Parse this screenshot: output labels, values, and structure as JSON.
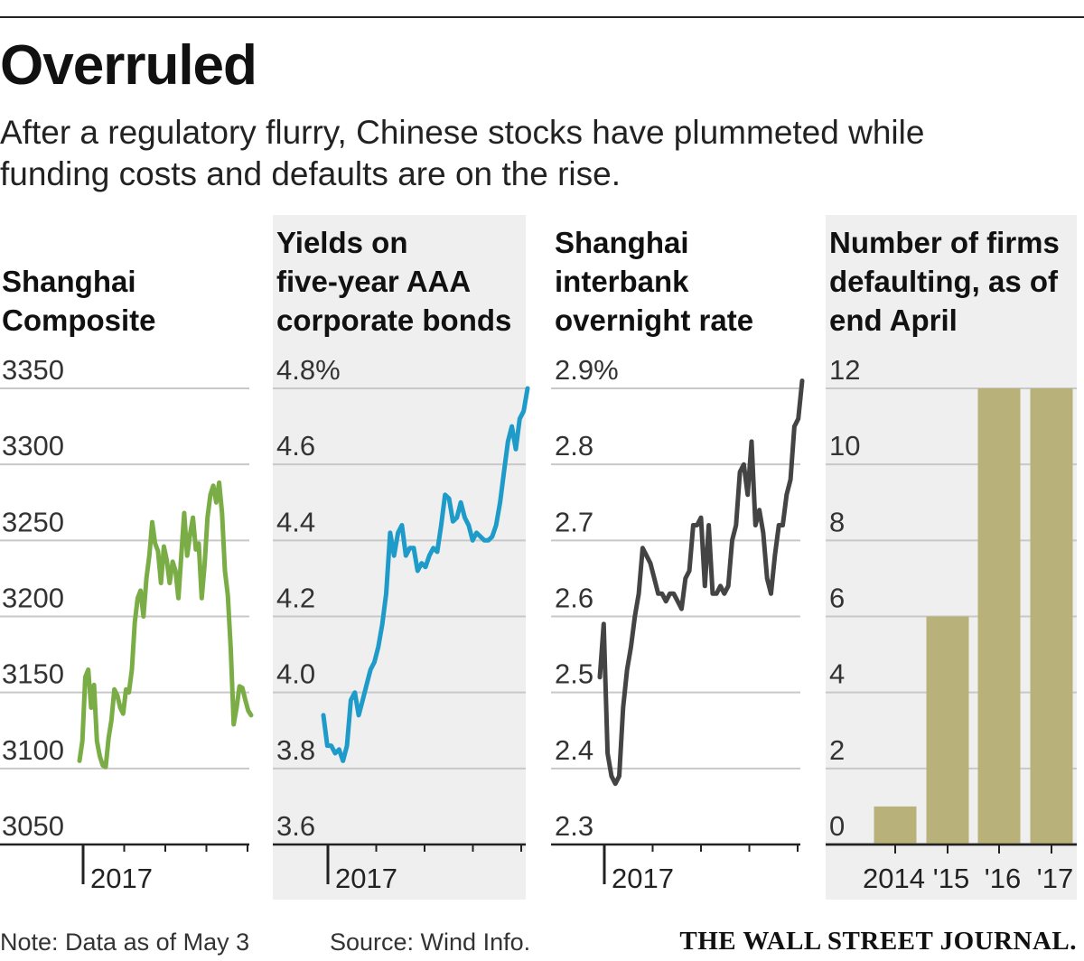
{
  "title": "Overruled",
  "subtitle": "After a regulatory flurry, Chinese stocks have plummeted while funding costs and defaults are on the rise.",
  "note": "Note: Data as of May 3",
  "source": "Source: Wind Info.",
  "publisher": "THE WALL STREET JOURNAL.",
  "colors": {
    "composite": "#7aad46",
    "yields": "#1e9bc8",
    "interbank": "#444444",
    "defaults": "#b8b27a",
    "panel_shade": "#efefef",
    "grid": "#c8c8c8"
  },
  "chart_data": [
    {
      "type": "line",
      "title": "Shanghai Composite",
      "title_lines": [
        "Shanghai",
        "Composite"
      ],
      "ylim": [
        3050,
        3350
      ],
      "yticks": [
        3050,
        3100,
        3150,
        3200,
        3250,
        3300,
        3350
      ],
      "ytick_labels": [
        "3050",
        "3100",
        "3150",
        "3200",
        "3250",
        "3300",
        "3350"
      ],
      "xlabel": "2017",
      "x_note": "trading days from early January to May 3, 2017",
      "values": [
        3105,
        3118,
        3160,
        3165,
        3140,
        3155,
        3118,
        3108,
        3102,
        3101,
        3120,
        3132,
        3152,
        3148,
        3140,
        3136,
        3152,
        3150,
        3165,
        3196,
        3212,
        3217,
        3200,
        3225,
        3240,
        3262,
        3248,
        3243,
        3222,
        3246,
        3237,
        3222,
        3236,
        3230,
        3212,
        3240,
        3268,
        3240,
        3254,
        3265,
        3244,
        3248,
        3212,
        3234,
        3265,
        3280,
        3286,
        3275,
        3288,
        3268,
        3230,
        3214,
        3178,
        3129,
        3140,
        3154,
        3153,
        3145,
        3138,
        3135
      ]
    },
    {
      "type": "line",
      "title": "Yields on five-year AAA corporate bonds",
      "title_lines": [
        "Yields on",
        "five-year AAA",
        "corporate bonds"
      ],
      "ylim": [
        3.6,
        4.8
      ],
      "yticks": [
        3.6,
        3.8,
        4.0,
        4.2,
        4.4,
        4.6,
        4.8
      ],
      "ytick_labels": [
        "3.6",
        "3.8",
        "4.0",
        "4.2",
        "4.4",
        "4.6",
        "4.8%"
      ],
      "xlabel": "2017",
      "x_note": "trading days from early January to May 3, 2017",
      "values": [
        3.94,
        3.86,
        3.86,
        3.84,
        3.85,
        3.82,
        3.86,
        3.98,
        4.0,
        3.94,
        3.98,
        4.02,
        4.06,
        4.08,
        4.12,
        4.18,
        4.26,
        4.42,
        4.36,
        4.42,
        4.44,
        4.36,
        4.38,
        4.38,
        4.32,
        4.34,
        4.33,
        4.36,
        4.38,
        4.37,
        4.44,
        4.52,
        4.51,
        4.45,
        4.46,
        4.5,
        4.46,
        4.44,
        4.4,
        4.42,
        4.41,
        4.4,
        4.4,
        4.41,
        4.44,
        4.5,
        4.58,
        4.66,
        4.7,
        4.64,
        4.72,
        4.74,
        4.8
      ]
    },
    {
      "type": "line",
      "title": "Shanghai interbank overnight rate",
      "title_lines": [
        "Shanghai",
        "interbank",
        "overnight rate"
      ],
      "ylim": [
        2.3,
        2.9
      ],
      "yticks": [
        2.3,
        2.4,
        2.5,
        2.6,
        2.7,
        2.8,
        2.9
      ],
      "ytick_labels": [
        "2.3",
        "2.4",
        "2.5",
        "2.6",
        "2.7",
        "2.8",
        "2.9%"
      ],
      "xlabel": "2017",
      "x_note": "trading days from early January to May 3, 2017",
      "values": [
        2.52,
        2.59,
        2.42,
        2.39,
        2.38,
        2.39,
        2.48,
        2.53,
        2.56,
        2.6,
        2.63,
        2.69,
        2.68,
        2.67,
        2.65,
        2.63,
        2.63,
        2.62,
        2.63,
        2.63,
        2.62,
        2.61,
        2.65,
        2.66,
        2.72,
        2.72,
        2.73,
        2.64,
        2.72,
        2.63,
        2.63,
        2.64,
        2.63,
        2.64,
        2.7,
        2.72,
        2.79,
        2.8,
        2.76,
        2.83,
        2.72,
        2.74,
        2.71,
        2.65,
        2.63,
        2.68,
        2.72,
        2.72,
        2.76,
        2.78,
        2.85,
        2.86,
        2.91
      ]
    },
    {
      "type": "bar",
      "title": "Number of firms defaulting, as of end April",
      "title_lines": [
        "Number of firms",
        "defaulting, as of",
        "end April"
      ],
      "ylim": [
        0,
        12
      ],
      "yticks": [
        0,
        2,
        4,
        6,
        8,
        10,
        12
      ],
      "ytick_labels": [
        "0",
        "2",
        "4",
        "6",
        "8",
        "10",
        "12"
      ],
      "categories": [
        "2014",
        "'15",
        "'16",
        "'17"
      ],
      "values": [
        1,
        6,
        12,
        12
      ]
    }
  ]
}
